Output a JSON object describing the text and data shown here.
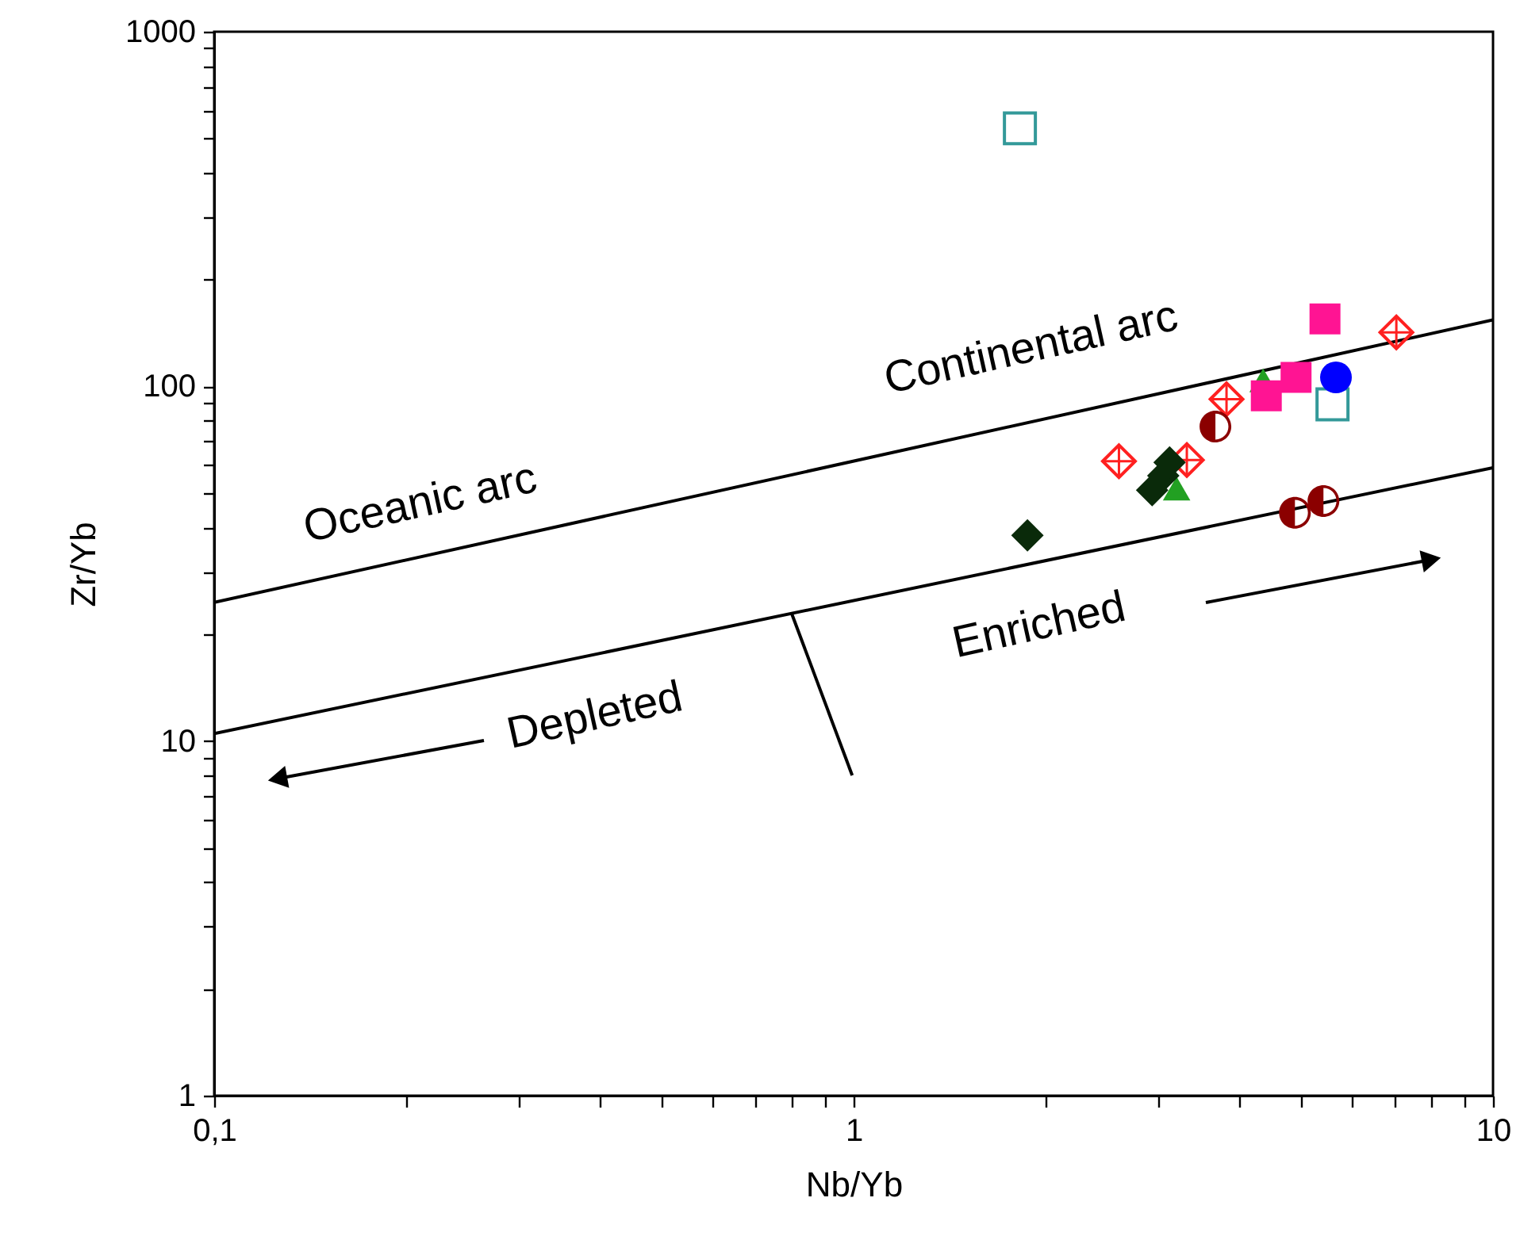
{
  "chart_data": {
    "type": "scatter",
    "xlabel": "Nb/Yb",
    "ylabel": "Zr/Yb",
    "log": "xy",
    "grid": false,
    "xlim": [
      0.1,
      10
    ],
    "ylim": [
      1,
      1000
    ],
    "xticks": [
      {
        "value": 0.1,
        "label": "0,1"
      },
      {
        "value": 0.2,
        "label": null
      },
      {
        "value": 0.3,
        "label": null
      },
      {
        "value": 0.4,
        "label": null
      },
      {
        "value": 0.5,
        "label": null
      },
      {
        "value": 0.6,
        "label": null
      },
      {
        "value": 0.7,
        "label": null
      },
      {
        "value": 0.8,
        "label": null
      },
      {
        "value": 0.9,
        "label": null
      },
      1,
      {
        "value": 2,
        "label": null
      },
      {
        "value": 3,
        "label": null
      },
      {
        "value": 4,
        "label": null
      },
      {
        "value": 5,
        "label": null
      },
      {
        "value": 6,
        "label": null
      },
      {
        "value": 7,
        "label": null
      },
      {
        "value": 8,
        "label": null
      },
      {
        "value": 9,
        "label": null
      },
      10
    ],
    "yticks": [
      1,
      {
        "value": 2,
        "label": null
      },
      {
        "value": 3,
        "label": null
      },
      {
        "value": 4,
        "label": null
      },
      {
        "value": 5,
        "label": null
      },
      {
        "value": 6,
        "label": null
      },
      {
        "value": 7,
        "label": null
      },
      {
        "value": 8,
        "label": null
      },
      {
        "value": 9,
        "label": null
      },
      10,
      {
        "value": 20,
        "label": null
      },
      {
        "value": 30,
        "label": null
      },
      {
        "value": 40,
        "label": null
      },
      {
        "value": 50,
        "label": null
      },
      {
        "value": 60,
        "label": null
      },
      {
        "value": 70,
        "label": null
      },
      {
        "value": 80,
        "label": null
      },
      {
        "value": 90,
        "label": null
      },
      100,
      {
        "value": 200,
        "label": null
      },
      {
        "value": 300,
        "label": null
      },
      {
        "value": 400,
        "label": null
      },
      {
        "value": 500,
        "label": null
      },
      {
        "value": 600,
        "label": null
      },
      {
        "value": 700,
        "label": null
      },
      {
        "value": 800,
        "label": null
      },
      {
        "value": 900,
        "label": null
      },
      1000
    ],
    "series": [
      {
        "type": "line",
        "color": "#000000",
        "x": [
          0.1,
          10
        ],
        "values": [
          24.6,
          154
        ]
      },
      {
        "type": "line",
        "color": "#000000",
        "x": [
          0.1,
          10
        ],
        "values": [
          10.5,
          59
        ]
      },
      {
        "type": "line",
        "color": "#000000",
        "x": [
          0.8,
          0.995
        ],
        "values": [
          22.9,
          8.0
        ]
      },
      {
        "marker": "square",
        "color": "#339999",
        "x": [
          1.82,
          5.61
        ],
        "values": [
          534,
          89
        ]
      },
      {
        "marker": "triangle",
        "color": "#22a022",
        "x": [
          3.2,
          4.37
        ],
        "values": [
          51.5,
          104
        ]
      },
      {
        "marker": "square",
        "color": "#ff1493",
        "x": [
          5.46,
          4.92,
          4.42
        ],
        "values": [
          155,
          106,
          94
        ]
      },
      {
        "marker": "circle",
        "color": "#0000ff",
        "x": [
          5.68
        ],
        "values": [
          106
        ]
      },
      {
        "marker": "cross",
        "color": "#ff2020",
        "x": [
          7.06,
          3.83,
          2.6,
          3.32
        ],
        "values": [
          142,
          92,
          61.5,
          62
        ]
      },
      {
        "marker": "circle",
        "color": "#8b0000",
        "x": [
          3.68,
          4.9,
          5.43
        ],
        "values": [
          77,
          44,
          47.5
        ]
      },
      {
        "marker": "diamond",
        "color": "#0a2a0a",
        "x": [
          1.87,
          2.93,
          3.05,
          3.12
        ],
        "values": [
          38,
          51,
          56,
          61
        ]
      }
    ],
    "annotations": [
      "Oceanic arc",
      "Continental  arc",
      "Depleted",
      "Enriched"
    ]
  }
}
